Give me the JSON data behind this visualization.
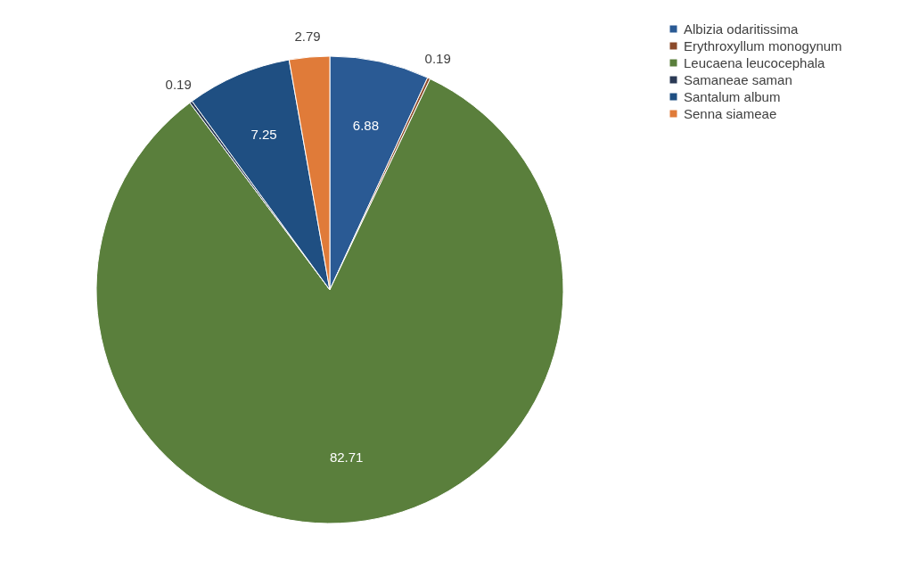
{
  "chart_data": {
    "type": "pie",
    "categories": [
      "Albizia odaritissima",
      "Erythroxyllum monogynum",
      "Leucaena leucocephala",
      "Samaneae saman",
      "Santalum album",
      "Senna siameae"
    ],
    "values": [
      6.88,
      0.19,
      82.71,
      0.19,
      7.25,
      2.79
    ],
    "colors": [
      "#2a5a94",
      "#8b4a2a",
      "#5a7f3c",
      "#2b3a55",
      "#1f4f82",
      "#e07b39"
    ],
    "data_labels": true,
    "legend": "right"
  }
}
